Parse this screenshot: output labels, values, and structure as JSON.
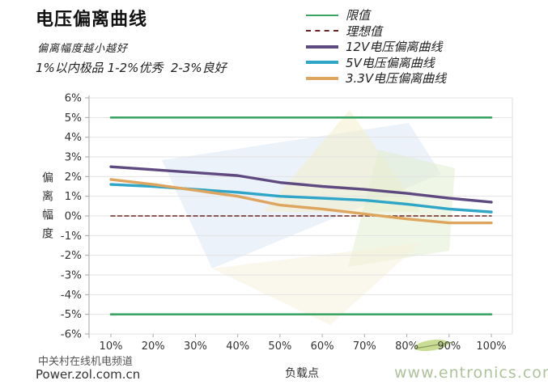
{
  "header": {
    "title": "电压偏离曲线",
    "subtitle": "偏离幅度越小越好",
    "note": "1%以内极品 1-2%优秀  2-3%良好"
  },
  "chart_data": {
    "type": "line",
    "x": [
      "10%",
      "20%",
      "30%",
      "40%",
      "50%",
      "60%",
      "70%",
      "80%",
      "90%",
      "100%"
    ],
    "xlabel": "负载点",
    "ylabel": "偏离幅度",
    "ylim": [
      -6,
      6
    ],
    "ytick_step": 1,
    "ytick_suffix": "%",
    "grid": true,
    "legend_position": "top-right",
    "series": [
      {
        "name": "限值",
        "role": "limit",
        "color": "#3aa564",
        "dashed": false,
        "in_legend": true,
        "values": [
          5,
          5,
          5,
          5,
          5,
          5,
          5,
          5,
          5,
          5
        ]
      },
      {
        "name": "限值(下限)",
        "role": "limit",
        "color": "#3aa564",
        "dashed": false,
        "in_legend": false,
        "values": [
          -5,
          -5,
          -5,
          -5,
          -5,
          -5,
          -5,
          -5,
          -5,
          -5
        ]
      },
      {
        "name": "理想值",
        "role": "ideal",
        "color": "#6b2320",
        "dashed": true,
        "in_legend": true,
        "values": [
          0,
          0,
          0,
          0,
          0,
          0,
          0,
          0,
          0,
          0
        ]
      },
      {
        "name": "12V电压偏离曲线",
        "role": "data",
        "color": "#5e4a80",
        "dashed": false,
        "in_legend": true,
        "values": [
          2.5,
          2.35,
          2.2,
          2.05,
          1.7,
          1.5,
          1.35,
          1.15,
          0.9,
          0.7
        ]
      },
      {
        "name": "5V电压偏离曲线",
        "role": "data",
        "color": "#2fa5c8",
        "dashed": false,
        "in_legend": true,
        "values": [
          1.6,
          1.5,
          1.35,
          1.2,
          1.0,
          0.9,
          0.8,
          0.6,
          0.35,
          0.2
        ]
      },
      {
        "name": "3.3V电压偏离曲线",
        "role": "data",
        "color": "#dda55e",
        "dashed": false,
        "in_legend": true,
        "values": [
          1.85,
          1.6,
          1.3,
          1.0,
          0.55,
          0.35,
          0.1,
          -0.15,
          -0.35,
          -0.35
        ]
      }
    ]
  },
  "footer": {
    "channel": "中关村在线机电频道",
    "site": "Power.zol.com.cn",
    "watermark": "www.entronics.com"
  }
}
